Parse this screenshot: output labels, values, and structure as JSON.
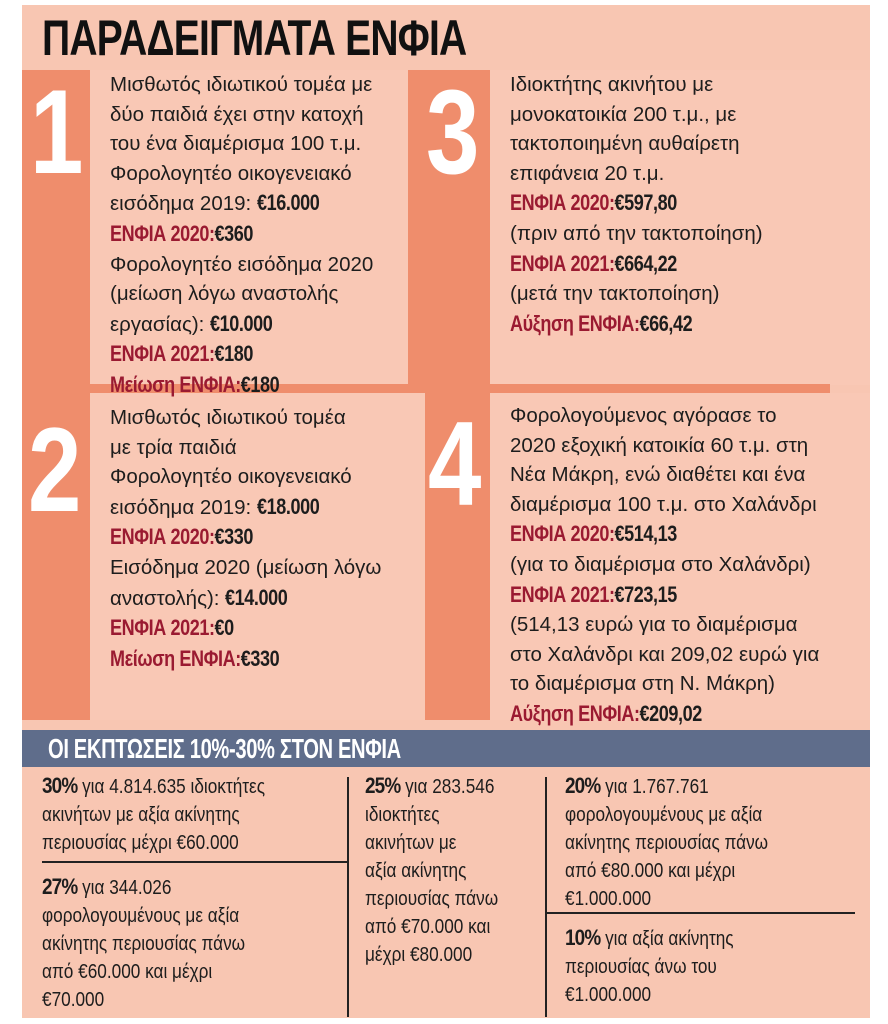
{
  "title": "ΠΑΡΑΔΕΙΓΜΑΤΑ ΕΝΦΙΑ",
  "colors": {
    "background": "#f8c6b2",
    "strip": "#ef8d6c",
    "label_red": "#9a1a31",
    "banner": "#5f6d8b"
  },
  "cases": [
    {
      "number": "1",
      "lines": [
        {
          "r": "Μισθωτός ιδιωτικού τομέα με"
        },
        {
          "r": "δύο παιδιά έχει στην κατοχή"
        },
        {
          "r": "του ένα διαμέρισμα 100 τ.μ."
        },
        {
          "r": "Φορολογητέο οικογενειακό"
        },
        {
          "r": "εισόδημα 2019: ",
          "b": "€16.000"
        },
        {
          "l": "ΕΝΦΙΑ 2020: ",
          "b": "€360"
        },
        {
          "r": "Φορολογητέο εισόδημα 2020"
        },
        {
          "r": "(μείωση λόγω αναστολής"
        },
        {
          "r": "εργασίας): ",
          "b": "€10.000"
        },
        {
          "l": "ΕΝΦΙΑ 2021: ",
          "b": "€180"
        },
        {
          "l": "Μείωση ΕΝΦΙΑ: ",
          "b": "€180"
        }
      ]
    },
    {
      "number": "2",
      "lines": [
        {
          "r": "Μισθωτός ιδιωτικού τομέα"
        },
        {
          "r": "με τρία παιδιά"
        },
        {
          "r": "Φορολογητέο οικογενειακό"
        },
        {
          "r": "εισόδημα 2019: ",
          "b": "€18.000"
        },
        {
          "l": "ΕΝΦΙΑ 2020: ",
          "b": "€330"
        },
        {
          "r": "Εισόδημα 2020 (μείωση λόγω"
        },
        {
          "r": "αναστολής): ",
          "b": "€14.000"
        },
        {
          "l": "ΕΝΦΙΑ 2021: ",
          "b": "€0"
        },
        {
          "l": "Μείωση ΕΝΦΙΑ: ",
          "b": "€330"
        }
      ]
    },
    {
      "number": "3",
      "lines": [
        {
          "r": "Ιδιοκτήτης ακινήτου με"
        },
        {
          "r": "μονοκατοικία 200 τ.μ., με"
        },
        {
          "r": "τακτοποιημένη αυθαίρετη"
        },
        {
          "r": "επιφάνεια 20 τ.μ."
        },
        {
          "l": "ΕΝΦΙΑ 2020: ",
          "b": "€597,80"
        },
        {
          "r": "(πριν από την τακτοποίηση)"
        },
        {
          "l": "ΕΝΦΙΑ 2021: ",
          "b": "€664,22"
        },
        {
          "r": "(μετά την τακτοποίηση)"
        },
        {
          "l": "Αύξηση ΕΝΦΙΑ: ",
          "b": "€66,42"
        }
      ]
    },
    {
      "number": "4",
      "lines": [
        {
          "r": "Φορολογούμενος αγόρασε το"
        },
        {
          "r": "2020 εξοχική κατοικία 60 τ.μ. στη"
        },
        {
          "r": "Νέα Μάκρη, ενώ διαθέτει και ένα"
        },
        {
          "r": "διαμέρισμα 100 τ.μ. στο Χαλάνδρι"
        },
        {
          "l": "ΕΝΦΙΑ 2020: ",
          "b": "€514,13"
        },
        {
          "r": "(για το διαμέρισμα στο Χαλάνδρι)"
        },
        {
          "l": "ΕΝΦΙΑ 2021: ",
          "b": "€723,15"
        },
        {
          "r": "(514,13 ευρώ για το διαμέρισμα"
        },
        {
          "r": "στο Χαλάνδρι και 209,02 ευρώ για"
        },
        {
          "r": "το διαμέρισμα στη Ν. Μάκρη)"
        },
        {
          "l": "Αύξηση ΕΝΦΙΑ: ",
          "b": "€209,02"
        }
      ]
    }
  ],
  "discounts_title": "ΟΙ ΕΚΠΤΩΣΕΙΣ 10%-30% ΣΤΟΝ ΕΝΦΙΑ",
  "discounts": [
    {
      "percent": "30%",
      "lines": [
        " για 4.814.635 ιδιοκτήτες",
        "ακινήτων με αξία ακίνητης",
        "περιουσίας μέχρι €60.000"
      ]
    },
    {
      "percent": "27%",
      "lines": [
        " για 344.026",
        "φορολογουμένους με αξία",
        "ακίνητης περιουσίας πάνω",
        "από €60.000 και μέχρι",
        "€70.000"
      ]
    },
    {
      "percent": "25%",
      "lines": [
        " για 283.546",
        "ιδιοκτήτες",
        "ακινήτων με",
        "αξία ακίνητης",
        "περιουσίας πάνω",
        "από €70.000 και",
        "μέχρι €80.000"
      ]
    },
    {
      "percent": "20%",
      "lines": [
        " για 1.767.761",
        "φορολογουμένους με αξία",
        "ακίνητης περιουσίας πάνω",
        "από €80.000 και μέχρι",
        "€1.000.000"
      ]
    },
    {
      "percent": "10%",
      "lines": [
        " για αξία ακίνητης",
        "περιουσίας άνω του",
        "€1.000.000"
      ]
    }
  ]
}
